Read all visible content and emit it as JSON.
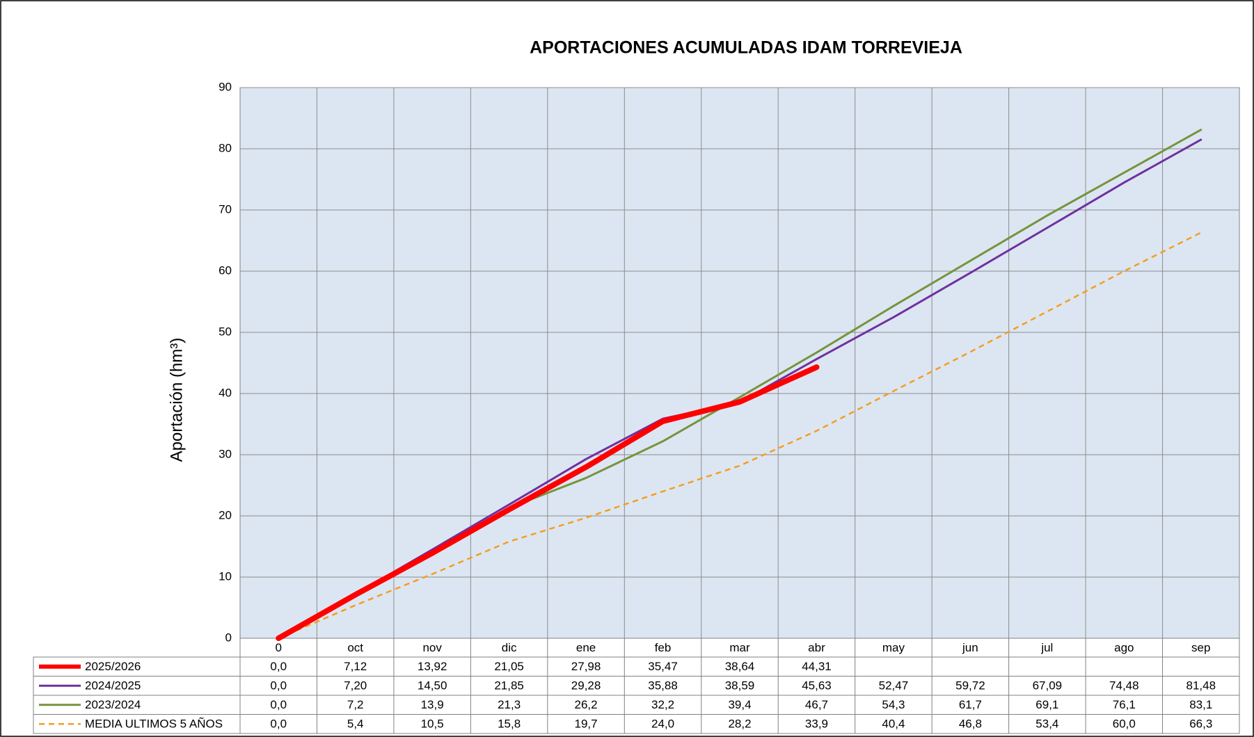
{
  "chart_data": {
    "type": "line",
    "title": "APORTACIONES ACUMULADAS IDAM TORREVIEJA",
    "y_label": "Aportación (hm³)",
    "categories": [
      "0",
      "oct",
      "nov",
      "dic",
      "ene",
      "feb",
      "mar",
      "abr",
      "may",
      "jun",
      "jul",
      "ago",
      "sep"
    ],
    "ylim": [
      0,
      90
    ],
    "yticks": [
      0,
      10,
      20,
      30,
      40,
      50,
      60,
      70,
      80,
      90
    ],
    "grid": true,
    "series": [
      {
        "name": "2025/2026",
        "color": "#ff0000",
        "values": [
          0,
          7.12,
          13.92,
          21.05,
          27.98,
          35.47,
          38.64,
          44.31,
          null,
          null,
          null,
          null,
          null
        ],
        "value_labels": [
          "0,0",
          "7,12",
          "13,92",
          "21,05",
          "27,98",
          "35,47",
          "38,64",
          "44,31",
          null,
          null,
          null,
          null,
          null
        ]
      },
      {
        "name": "2024/2025",
        "color": "#7030a0",
        "values": [
          0,
          7.2,
          14.5,
          21.85,
          29.28,
          35.88,
          38.59,
          45.63,
          52.47,
          59.72,
          67.09,
          74.48,
          81.48
        ],
        "value_labels": [
          "0,0",
          "7,20",
          "14,50",
          "21,85",
          "29,28",
          "35,88",
          "38,59",
          "45,63",
          "52,47",
          "59,72",
          "67,09",
          "74,48",
          "81,48"
        ]
      },
      {
        "name": "2023/2024",
        "color": "#77933c",
        "values": [
          0,
          7.2,
          13.9,
          21.3,
          26.2,
          32.2,
          39.4,
          46.7,
          54.3,
          61.7,
          69.1,
          76.1,
          83.1
        ],
        "value_labels": [
          "0,0",
          "7,2",
          "13,9",
          "21,3",
          "26,2",
          "32,2",
          "39,4",
          "46,7",
          "54,3",
          "61,7",
          "69,1",
          "76,1",
          "83,1"
        ]
      },
      {
        "name": "MEDIA ULTIMOS 5 AÑOS",
        "color": "#f59d1e",
        "dashed": true,
        "values": [
          0,
          5.4,
          10.5,
          15.8,
          19.7,
          24.0,
          28.2,
          33.9,
          40.4,
          46.8,
          53.4,
          60.0,
          66.3
        ],
        "value_labels": [
          "0,0",
          "5,4",
          "10,5",
          "15,8",
          "19,7",
          "24,0",
          "28,2",
          "33,9",
          "40,4",
          "46,8",
          "53,4",
          "60,0",
          "66,3"
        ]
      }
    ]
  }
}
